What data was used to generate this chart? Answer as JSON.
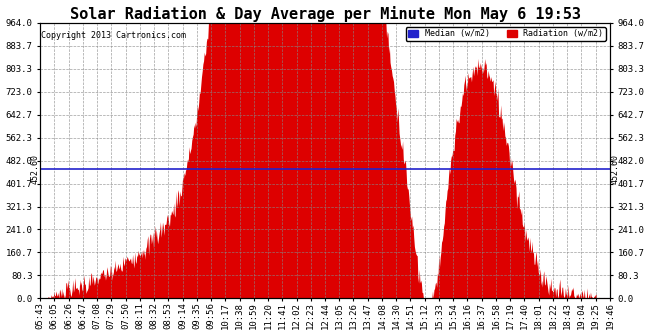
{
  "title": "Solar Radiation & Day Average per Minute Mon May 6 19:53",
  "copyright": "Copyright 2013 Cartronics.com",
  "median_value": 452.6,
  "ymax": 964.0,
  "yticks": [
    0.0,
    80.3,
    160.7,
    241.0,
    321.3,
    401.7,
    482.0,
    562.3,
    642.7,
    723.0,
    803.3,
    883.7,
    964.0
  ],
  "background_color": "#ffffff",
  "fill_color": "#dd0000",
  "median_color": "#2222cc",
  "legend_median_color": "#2222cc",
  "legend_radiation_color": "#dd0000",
  "title_fontsize": 11,
  "tick_fontsize": 6.5,
  "xtick_labels": [
    "05:43",
    "06:05",
    "06:26",
    "06:47",
    "07:08",
    "07:29",
    "07:50",
    "08:11",
    "08:32",
    "08:53",
    "09:14",
    "09:35",
    "09:56",
    "10:17",
    "10:38",
    "10:59",
    "11:20",
    "11:41",
    "12:02",
    "12:23",
    "12:44",
    "13:05",
    "13:26",
    "13:47",
    "14:08",
    "14:30",
    "14:51",
    "15:12",
    "15:33",
    "15:54",
    "16:16",
    "16:37",
    "16:58",
    "17:19",
    "17:40",
    "18:01",
    "18:22",
    "18:43",
    "19:04",
    "19:25",
    "19:46"
  ]
}
